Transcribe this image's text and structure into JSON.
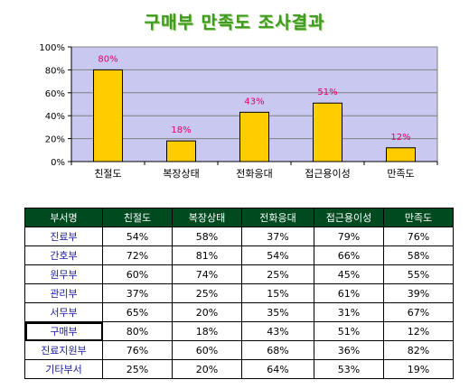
{
  "title": "구매부 만족도 조사결과",
  "chart_data": {
    "type": "bar",
    "categories": [
      "친절도",
      "복장상태",
      "전화응대",
      "접근용이성",
      "만족도"
    ],
    "values": [
      80,
      18,
      43,
      51,
      12
    ],
    "data_labels": [
      "80%",
      "18%",
      "43%",
      "51%",
      "12%"
    ],
    "title": "구매부 만족도 조사결과",
    "ylim": [
      0,
      100
    ],
    "y_ticks": [
      0,
      20,
      40,
      60,
      80,
      100
    ],
    "y_tick_labels": [
      "0%",
      "20%",
      "40%",
      "60%",
      "80%",
      "100%"
    ],
    "grid": true,
    "legend": "none",
    "colors": {
      "bar": "#ffcc00",
      "plot_bg": "#c8c8f0",
      "label": "#e0006a"
    }
  },
  "table": {
    "headers": [
      "부서명",
      "친절도",
      "복장상태",
      "전화응대",
      "접근용이성",
      "만족도"
    ],
    "rows": [
      [
        "진료부",
        "54%",
        "58%",
        "37%",
        "79%",
        "76%"
      ],
      [
        "간호부",
        "72%",
        "81%",
        "54%",
        "66%",
        "58%"
      ],
      [
        "원무부",
        "60%",
        "74%",
        "25%",
        "45%",
        "55%"
      ],
      [
        "관리부",
        "37%",
        "25%",
        "15%",
        "61%",
        "39%"
      ],
      [
        "서무부",
        "65%",
        "20%",
        "35%",
        "31%",
        "67%"
      ],
      [
        "구매부",
        "80%",
        "18%",
        "43%",
        "51%",
        "12%"
      ],
      [
        "진료지원부",
        "76%",
        "60%",
        "68%",
        "36%",
        "82%"
      ],
      [
        "기타부서",
        "25%",
        "20%",
        "64%",
        "53%",
        "19%"
      ]
    ],
    "selected_row": "구매부"
  }
}
